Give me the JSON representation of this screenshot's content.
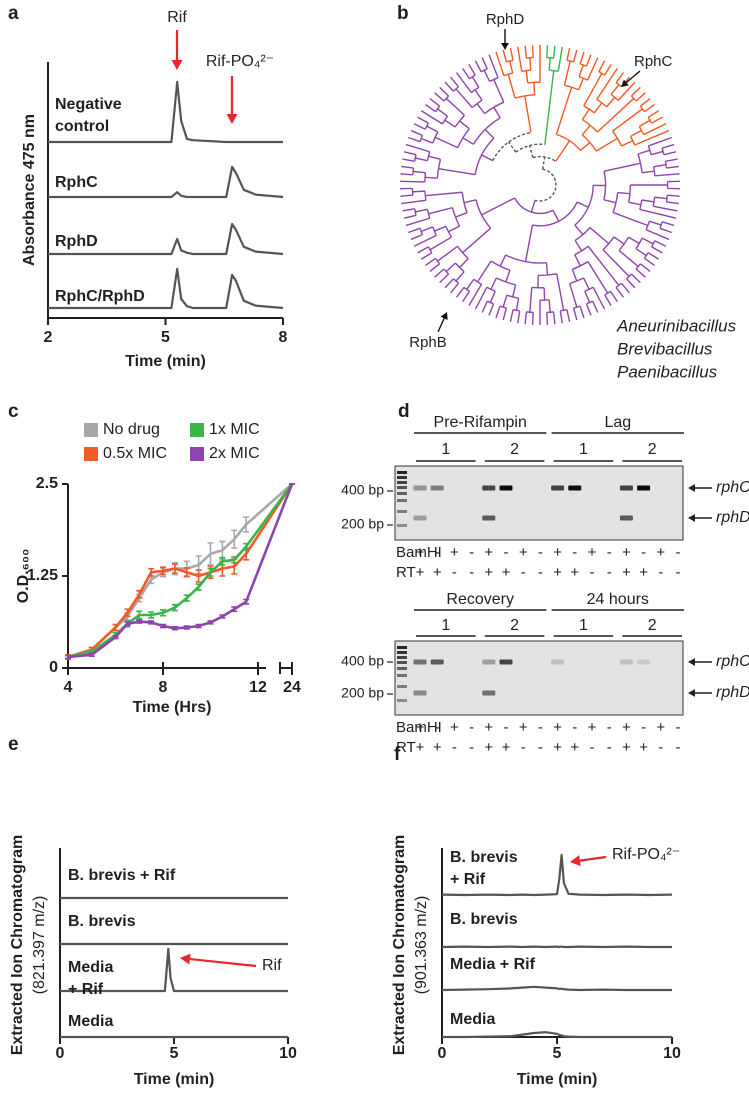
{
  "chart_data": [
    {
      "panel": "a",
      "type": "chromatogram",
      "xlabel": "Time (min)",
      "ylabel": "Absorbance 475 nm",
      "xlim": [
        2,
        8
      ],
      "xticks": [
        2,
        5,
        8
      ],
      "x": [
        2,
        5.15,
        5.3,
        5.4,
        5.55,
        5.7,
        6.55,
        6.7,
        6.8,
        7.0,
        7.3,
        8
      ],
      "series": [
        {
          "name": "Negative control",
          "color": "#555555",
          "values": [
            0,
            0,
            100,
            35,
            5,
            3,
            0,
            0,
            0,
            0,
            0,
            0
          ]
        },
        {
          "name": "RphC",
          "color": "#555555",
          "values": [
            0,
            0,
            8,
            2,
            0,
            0,
            0,
            50,
            40,
            12,
            4,
            0
          ]
        },
        {
          "name": "RphD",
          "color": "#555555",
          "values": [
            0,
            0,
            25,
            6,
            2,
            0,
            0,
            50,
            40,
            12,
            4,
            0
          ]
        },
        {
          "name": "RphC/RphD",
          "color": "#555555",
          "values": [
            0,
            0,
            65,
            15,
            3,
            0,
            0,
            55,
            45,
            12,
            4,
            0
          ]
        }
      ],
      "annotations": [
        "Rif",
        "Rif-PO₄²⁻"
      ],
      "annotation_color": "#e8262c"
    },
    {
      "panel": "c",
      "type": "line",
      "xlabel": "Time (Hrs)",
      "ylabel": "O.D.₆₀₀",
      "xlim": [
        4,
        24
      ],
      "xticks": [
        4,
        8,
        12,
        24
      ],
      "ylim": [
        0,
        2.5
      ],
      "yticks": [
        0,
        1.25,
        2.5
      ],
      "x": [
        4,
        5,
        6,
        6.5,
        7,
        7.5,
        8,
        8.5,
        9,
        9.5,
        10,
        10.5,
        11,
        11.5,
        24
      ],
      "series": [
        {
          "name": "No drug",
          "color": "#a7a9ac",
          "values": [
            0.15,
            0.25,
            0.55,
            0.7,
            0.95,
            1.2,
            1.3,
            1.35,
            1.35,
            1.4,
            1.55,
            1.6,
            1.75,
            1.95,
            2.5
          ],
          "errors": [
            0.03,
            0.03,
            0.04,
            0.05,
            0.05,
            0.05,
            0.06,
            0.08,
            0.1,
            0.12,
            0.15,
            0.12,
            0.12,
            0.1,
            0
          ]
        },
        {
          "name": "0.5x MIC",
          "color": "#f15a29",
          "values": [
            0.15,
            0.25,
            0.55,
            0.75,
            1.0,
            1.3,
            1.32,
            1.35,
            1.3,
            1.25,
            1.3,
            1.35,
            1.38,
            1.55,
            2.5
          ],
          "errors": [
            0.03,
            0.03,
            0.04,
            0.05,
            0.05,
            0.05,
            0.05,
            0.06,
            0.06,
            0.08,
            0.08,
            0.1,
            0.1,
            0.08,
            0
          ]
        },
        {
          "name": "1x MIC",
          "color": "#39b54a",
          "values": [
            0.15,
            0.22,
            0.45,
            0.6,
            0.72,
            0.72,
            0.75,
            0.82,
            0.95,
            1.1,
            1.3,
            1.45,
            1.47,
            1.65,
            2.5
          ],
          "errors": [
            0.02,
            0.02,
            0.03,
            0.04,
            0.05,
            0.04,
            0.04,
            0.04,
            0.04,
            0.04,
            0.05,
            0.05,
            0.04,
            0.04,
            0
          ]
        },
        {
          "name": "2x MIC",
          "color": "#8e44ad",
          "values": [
            0.15,
            0.18,
            0.42,
            0.6,
            0.63,
            0.62,
            0.57,
            0.54,
            0.55,
            0.57,
            0.62,
            0.7,
            0.8,
            0.9,
            2.5
          ],
          "errors": [
            0.02,
            0.02,
            0.02,
            0.02,
            0.02,
            0.02,
            0.02,
            0.02,
            0.02,
            0.02,
            0.02,
            0.02,
            0.03,
            0.03,
            0
          ]
        }
      ]
    },
    {
      "panel": "e",
      "type": "chromatogram",
      "xlabel": "Time (min)",
      "ylabel": "Extracted Ion Chromatogram",
      "ylabel_unit": "(821.397 m/z)",
      "xlim": [
        0,
        10
      ],
      "xticks": [
        0,
        5,
        10
      ],
      "x": [
        0,
        4.6,
        4.75,
        4.85,
        5.0,
        10
      ],
      "series": [
        {
          "name": "B. brevis + Rif",
          "color": "#555555",
          "values": [
            0,
            0,
            0,
            0,
            0,
            0
          ]
        },
        {
          "name": "B. brevis",
          "color": "#555555",
          "values": [
            0,
            0,
            0,
            0,
            0,
            0
          ]
        },
        {
          "name": "Media + Rif",
          "color": "#555555",
          "values": [
            0,
            0,
            100,
            30,
            0,
            0
          ]
        },
        {
          "name": "Media",
          "color": "#555555",
          "values": [
            0,
            0,
            0,
            0,
            0,
            0
          ]
        }
      ],
      "annotations": [
        "Rif"
      ],
      "annotation_color": "#e8262c"
    },
    {
      "panel": "f",
      "type": "chromatogram",
      "xlabel": "Time (min)",
      "ylabel": "Extracted Ion Chromatogram",
      "ylabel_unit": "(901.363 m/z)",
      "xlim": [
        0,
        10
      ],
      "xticks": [
        0,
        5,
        10
      ],
      "x": [
        0,
        1,
        2,
        3,
        3.5,
        4,
        4.5,
        5,
        5.1,
        5.2,
        5.3,
        5.5,
        6,
        7,
        8,
        9,
        10
      ],
      "series": [
        {
          "name": "B. brevis + Rif",
          "color": "#555555",
          "values": [
            1,
            0,
            1,
            0,
            1,
            0,
            1,
            2,
            40,
            100,
            30,
            3,
            1,
            0,
            1,
            0,
            1
          ]
        },
        {
          "name": "B. brevis",
          "color": "#555555",
          "values": [
            0,
            1,
            0,
            1,
            0,
            1,
            0,
            1,
            0,
            1,
            0,
            0,
            1,
            0,
            1,
            0,
            0
          ]
        },
        {
          "name": "Media + Rif",
          "color": "#555555",
          "values": [
            0,
            1,
            2,
            4,
            6,
            8,
            6,
            4,
            3,
            3,
            2,
            1,
            0,
            1,
            0,
            0,
            0
          ]
        },
        {
          "name": "Media",
          "color": "#555555",
          "values": [
            0,
            0,
            1,
            2,
            6,
            10,
            12,
            8,
            5,
            4,
            2,
            1,
            0,
            0,
            0,
            0,
            0
          ]
        }
      ],
      "annotations": [
        "Rif-PO₄²⁻"
      ],
      "annotation_color": "#e8262c"
    }
  ],
  "tree": {
    "panel": "b",
    "labels": [
      "RphD",
      "RphC",
      "RphB"
    ],
    "legend": [
      {
        "name": "Aneurinibacillus",
        "color": "#39b54a"
      },
      {
        "name": "Brevibacillus",
        "color": "#f15a22"
      },
      {
        "name": "Paenibacillus",
        "color": "#8e44ad"
      }
    ]
  },
  "gel": {
    "panel": "d",
    "blocks": [
      {
        "groups": [
          {
            "title": "Pre-Rifampin",
            "reps": [
              "1",
              "2"
            ]
          },
          {
            "title": "Lag",
            "reps": [
              "1",
              "2"
            ]
          }
        ]
      },
      {
        "groups": [
          {
            "title": "Recovery",
            "reps": [
              "1",
              "2"
            ]
          },
          {
            "title": "24 hours",
            "reps": [
              "1",
              "2"
            ]
          }
        ]
      }
    ],
    "ladder": [
      "400 bp",
      "200 bp"
    ],
    "products": [
      "rphC",
      "rphD"
    ],
    "rows": [
      {
        "name": "BamHI",
        "signs": [
          "+",
          "-",
          "+",
          "-",
          "+",
          "-",
          "+",
          "-",
          "+",
          "-",
          "+",
          "-",
          "+",
          "-",
          "+",
          "-"
        ]
      },
      {
        "name": "RT",
        "signs": [
          "+",
          "+",
          "-",
          "-",
          "+",
          "+",
          "-",
          "-",
          "+",
          "+",
          "-",
          "-",
          "+",
          "+",
          "-",
          "-"
        ]
      }
    ]
  }
}
